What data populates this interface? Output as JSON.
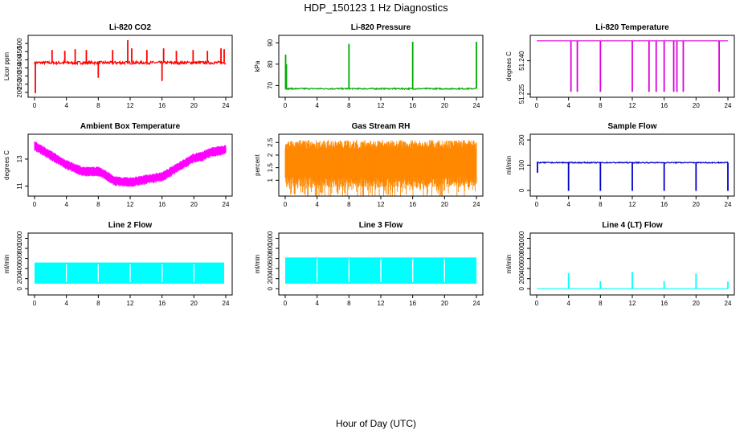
{
  "page": {
    "title": "HDP_150123  1 Hz Diagnostics",
    "xlabel": "Hour of Day (UTC)"
  },
  "chart_data": [
    {
      "id": "co2",
      "type": "line",
      "title": "Li-820 CO2",
      "ylabel": "Licor ppm",
      "color": "#ff0000",
      "xlim": [
        0,
        24
      ],
      "ylim": [
        190,
        530
      ],
      "xticks": [
        0,
        4,
        8,
        12,
        16,
        20,
        24
      ],
      "yticks": [
        200,
        250,
        300,
        350,
        400,
        450,
        500
      ],
      "base": 382,
      "noise": 9,
      "trend": [],
      "spikes": [
        [
          0.1,
          195
        ],
        [
          0.3,
          380
        ],
        [
          2.2,
          460
        ],
        [
          3.8,
          455
        ],
        [
          5.1,
          465
        ],
        [
          6.5,
          460
        ],
        [
          8.0,
          290
        ],
        [
          9.8,
          460
        ],
        [
          11.7,
          520
        ],
        [
          12.2,
          470
        ],
        [
          14.1,
          460
        ],
        [
          16.0,
          270
        ],
        [
          16.2,
          470
        ],
        [
          17.8,
          455
        ],
        [
          19.9,
          460
        ],
        [
          21.7,
          455
        ],
        [
          23.4,
          470
        ],
        [
          23.8,
          465
        ]
      ]
    },
    {
      "id": "pressure",
      "type": "line",
      "title": "Li-820 Pressure",
      "ylabel": "kPa",
      "color": "#00aa00",
      "xlim": [
        0,
        24
      ],
      "ylim": [
        66,
        92
      ],
      "xticks": [
        0,
        4,
        8,
        12,
        16,
        20,
        24
      ],
      "yticks": [
        70,
        80,
        90
      ],
      "base": 68.5,
      "noise": 0.3,
      "trend": [],
      "spikes": [
        [
          0.05,
          84.5
        ],
        [
          0.15,
          80
        ],
        [
          8.0,
          89.5
        ],
        [
          16.0,
          90.5
        ],
        [
          24.0,
          90.5
        ]
      ]
    },
    {
      "id": "temp820",
      "type": "line",
      "title": "Li-820 Temperature",
      "ylabel": "degrees C",
      "color": "#dd00dd",
      "xlim": [
        0,
        24
      ],
      "ylim": [
        51.225,
        51.25
      ],
      "xticks": [
        0,
        4,
        8,
        12,
        16,
        20,
        24
      ],
      "yticks": [
        51.225,
        51.24
      ],
      "base": 51.249,
      "noise": 0,
      "trend": [],
      "spikes": [
        [
          4.3,
          51.226
        ],
        [
          5.1,
          51.226
        ],
        [
          8.0,
          51.226
        ],
        [
          12.0,
          51.226
        ],
        [
          14.1,
          51.226
        ],
        [
          15.0,
          51.226
        ],
        [
          16.0,
          51.226
        ],
        [
          17.2,
          51.226
        ],
        [
          17.6,
          51.226
        ],
        [
          18.4,
          51.226
        ],
        [
          22.9,
          51.226
        ]
      ]
    },
    {
      "id": "ambient",
      "type": "band",
      "title": "Ambient Box Temperature",
      "ylabel": "degrees C",
      "color": "#ff00ff",
      "xlim": [
        0,
        24
      ],
      "ylim": [
        10.5,
        14.6
      ],
      "xticks": [
        0,
        4,
        8,
        12,
        16,
        20,
        24
      ],
      "yticks": [
        11,
        13
      ],
      "trend": [
        [
          0,
          14.0
        ],
        [
          2,
          13.3
        ],
        [
          4,
          12.6
        ],
        [
          6,
          12.1
        ],
        [
          8,
          12.1
        ],
        [
          9,
          11.8
        ],
        [
          10,
          11.4
        ],
        [
          12,
          11.3
        ],
        [
          14,
          11.5
        ],
        [
          16,
          11.7
        ],
        [
          18,
          12.4
        ],
        [
          20,
          13.1
        ],
        [
          21,
          13.2
        ],
        [
          22,
          13.5
        ],
        [
          24,
          13.7
        ]
      ],
      "band": 0.35
    },
    {
      "id": "rh",
      "type": "band",
      "title": "Gas Stream RH",
      "ylabel": "percent",
      "color": "#ff8800",
      "xlim": [
        0,
        24
      ],
      "ylim": [
        0.5,
        2.7
      ],
      "xticks": [
        0,
        4,
        8,
        12,
        16,
        20,
        24
      ],
      "yticks": [
        1.0,
        1.5,
        2.0,
        2.5
      ],
      "trend": [
        [
          0,
          1.7
        ],
        [
          24,
          1.7
        ]
      ],
      "band": 0.9,
      "dipdepth": 0.7
    },
    {
      "id": "sample",
      "type": "line",
      "title": "Sample Flow",
      "ylabel": "ml/min",
      "color": "#0000cc",
      "xlim": [
        0,
        24
      ],
      "ylim": [
        -10,
        210
      ],
      "xticks": [
        0,
        4,
        8,
        12,
        16,
        20,
        24
      ],
      "yticks": [
        0,
        100,
        200
      ],
      "base": 110,
      "noise": 2,
      "trend": [],
      "spikes": [
        [
          0.1,
          70
        ],
        [
          4.0,
          -2
        ],
        [
          8.0,
          -2
        ],
        [
          12.0,
          -2
        ],
        [
          16.0,
          -2
        ],
        [
          20.0,
          -2
        ],
        [
          24.0,
          -2
        ]
      ]
    },
    {
      "id": "line2",
      "type": "fill",
      "title": "Line 2 Flow",
      "ylabel": "ml/min",
      "color": "#00ffff",
      "xlim": [
        0,
        24
      ],
      "ylim": [
        -60,
        1040
      ],
      "xticks": [
        0,
        4,
        8,
        12,
        16,
        20,
        24
      ],
      "yticks": [
        0,
        200,
        400,
        600,
        800,
        1000
      ],
      "low": 100,
      "high": 520,
      "xstart": 0.0,
      "xend": 23.8,
      "gaps": [
        4.0,
        8.0,
        12.0,
        16.0,
        20.0
      ]
    },
    {
      "id": "line3",
      "type": "fill",
      "title": "Line 3 Flow",
      "ylabel": "ml/min",
      "color": "#00ffff",
      "xlim": [
        0,
        24
      ],
      "ylim": [
        -60,
        1040
      ],
      "xticks": [
        0,
        4,
        8,
        12,
        16,
        20,
        24
      ],
      "yticks": [
        0,
        200,
        400,
        600,
        800,
        1000
      ],
      "low": 100,
      "high": 620,
      "xstart": 0.0,
      "xend": 24.0,
      "gaps": [
        4.0,
        8.0,
        12.0,
        16.0,
        20.0
      ]
    },
    {
      "id": "line4",
      "type": "line",
      "title": "Line 4 (LT) Flow",
      "ylabel": "ml/min",
      "color": "#00ffff",
      "xlim": [
        0,
        24
      ],
      "ylim": [
        -60,
        1040
      ],
      "xticks": [
        0,
        4,
        8,
        12,
        16,
        20,
        24
      ],
      "yticks": [
        0,
        200,
        400,
        600,
        800,
        1000
      ],
      "base": 0,
      "noise": 0,
      "trend": [],
      "spikes": [
        [
          4.0,
          310
        ],
        [
          8.0,
          150
        ],
        [
          12.0,
          330
        ],
        [
          16.0,
          150
        ],
        [
          20.0,
          300
        ],
        [
          24.0,
          140
        ]
      ]
    }
  ]
}
